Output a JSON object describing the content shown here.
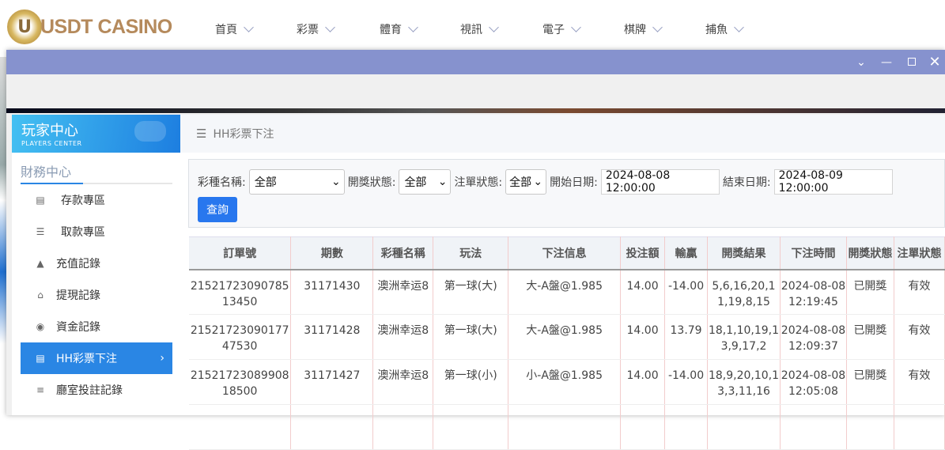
{
  "header": {
    "logo_text": "USDT CASINO",
    "logo_letter": "U",
    "nav": [
      "首頁",
      "彩票",
      "體育",
      "視訊",
      "電子",
      "棋牌",
      "捕魚"
    ]
  },
  "window": {
    "controls": [
      "chevron-down",
      "minimize",
      "maximize",
      "close"
    ],
    "title_color": "#8692ce"
  },
  "sidebar": {
    "title": "玩家中心",
    "subtitle": "PLAYERS CENTER",
    "section": "財務中心",
    "items": [
      {
        "label": "存款專區",
        "icon": "card-icon"
      },
      {
        "label": "取款專區",
        "icon": "hand-icon"
      },
      {
        "label": "充值記錄",
        "icon": "money-bag-icon"
      },
      {
        "label": "提現記錄",
        "icon": "wallet-icon"
      },
      {
        "label": "資金記錄",
        "icon": "piggy-icon"
      },
      {
        "label": "HH彩票下注",
        "icon": "list-icon",
        "active": true
      },
      {
        "label": "廳室投註記錄",
        "icon": "list-detail-icon"
      }
    ]
  },
  "breadcrumb": "HH彩票下注",
  "filter": {
    "lottery_label": "彩種名稱:",
    "lottery_value": "全部",
    "draw_label": "開獎狀態:",
    "draw_value": "全部",
    "order_label": "注單狀態:",
    "order_value": "全部",
    "start_label": "開始日期:",
    "start_value": "2024-08-08 12:00:00",
    "end_label": "結束日期:",
    "end_value": "2024-08-09 12:00:00",
    "query": "查詢"
  },
  "table": {
    "columns": [
      "訂單號",
      "期數",
      "彩種名稱",
      "玩法",
      "下注信息",
      "投注額",
      "輸贏",
      "開獎結果",
      "下注時間",
      "開獎狀態",
      "注單狀態"
    ],
    "rows": [
      [
        "2152172309078513450",
        "31171430",
        "澳洲幸运8",
        "第一球(大)",
        "大-A盤@1.985",
        "14.00",
        "-14.00",
        "5,6,16,20,11,19,8,15",
        "2024-08-08 12:19:45",
        "已開獎",
        "有效"
      ],
      [
        "2152172309017747530",
        "31171428",
        "澳洲幸运8",
        "第一球(大)",
        "大-A盤@1.985",
        "14.00",
        "13.79",
        "18,1,10,19,13,9,17,2",
        "2024-08-08 12:09:37",
        "已開獎",
        "有效"
      ],
      [
        "2152172308990818500",
        "31171427",
        "澳洲幸运8",
        "第一球(小)",
        "小-A盤@1.985",
        "14.00",
        "-14.00",
        "18,9,20,10,13,3,11,16",
        "2024-08-08 12:05:08",
        "已開獎",
        "有效"
      ]
    ]
  }
}
